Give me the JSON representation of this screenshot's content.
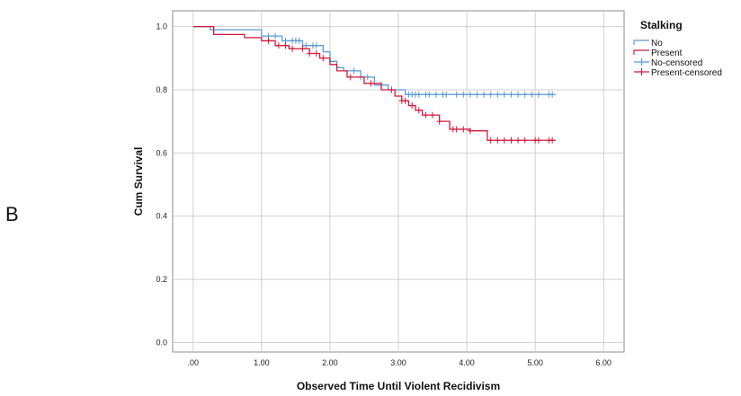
{
  "panel_label": "B",
  "chart_data": {
    "type": "line",
    "subtype": "kaplan-meier",
    "xlabel": "Observed Time Until Violent Recidivism",
    "ylabel": "Cum Survival",
    "xlim": [
      -0.3,
      6.3
    ],
    "ylim": [
      -0.03,
      1.05
    ],
    "x_ticks": [
      0,
      1,
      2,
      3,
      4,
      5,
      6
    ],
    "x_tick_labels": [
      ".00",
      "1.00",
      "2.00",
      "3.00",
      "4.00",
      "5.00",
      "6.00"
    ],
    "y_ticks": [
      0,
      0.2,
      0.4,
      0.6,
      0.8,
      1.0
    ],
    "y_tick_labels": [
      "0.0",
      "0.2",
      "0.4",
      "0.6",
      "0.8",
      "1.0"
    ],
    "grid": true,
    "legend": {
      "title": "Stalking",
      "placement": "right",
      "entries": [
        {
          "label": "No",
          "kind": "line",
          "color": "#5b9bd5"
        },
        {
          "label": "Present",
          "kind": "line",
          "color": "#d1193b"
        },
        {
          "label": "No-censored",
          "kind": "marker",
          "color": "#5b9bd5"
        },
        {
          "label": "Present-censored",
          "kind": "marker",
          "color": "#d1193b"
        }
      ]
    },
    "series": [
      {
        "name": "No",
        "color": "#5b9bd5",
        "steps": [
          [
            0,
            1.0
          ],
          [
            0.25,
            0.99
          ],
          [
            1.0,
            0.97
          ],
          [
            1.3,
            0.955
          ],
          [
            1.6,
            0.94
          ],
          [
            1.9,
            0.92
          ],
          [
            2.0,
            0.89
          ],
          [
            2.1,
            0.87
          ],
          [
            2.2,
            0.86
          ],
          [
            2.45,
            0.84
          ],
          [
            2.65,
            0.815
          ],
          [
            2.85,
            0.8
          ],
          [
            3.1,
            0.785
          ],
          [
            5.3,
            0.785
          ]
        ],
        "censored_x": [
          1.1,
          1.2,
          1.35,
          1.45,
          1.5,
          1.55,
          1.65,
          1.75,
          1.8,
          2.35,
          2.45,
          2.55,
          2.75,
          3.15,
          3.2,
          3.25,
          3.3,
          3.4,
          3.45,
          3.55,
          3.65,
          3.7,
          3.85,
          3.95,
          4.05,
          4.15,
          4.25,
          4.35,
          4.45,
          4.55,
          4.65,
          4.75,
          4.85,
          4.95,
          5.05,
          5.2,
          5.25
        ]
      },
      {
        "name": "Present",
        "color": "#d1193b",
        "steps": [
          [
            0,
            1.0
          ],
          [
            0.3,
            0.975
          ],
          [
            0.75,
            0.965
          ],
          [
            1.0,
            0.955
          ],
          [
            1.2,
            0.94
          ],
          [
            1.4,
            0.93
          ],
          [
            1.7,
            0.915
          ],
          [
            1.85,
            0.9
          ],
          [
            2.0,
            0.88
          ],
          [
            2.1,
            0.86
          ],
          [
            2.25,
            0.84
          ],
          [
            2.5,
            0.82
          ],
          [
            2.75,
            0.8
          ],
          [
            2.95,
            0.78
          ],
          [
            3.05,
            0.765
          ],
          [
            3.15,
            0.75
          ],
          [
            3.25,
            0.735
          ],
          [
            3.35,
            0.72
          ],
          [
            3.6,
            0.7
          ],
          [
            3.75,
            0.675
          ],
          [
            4.05,
            0.67
          ],
          [
            4.3,
            0.64
          ],
          [
            5.3,
            0.64
          ]
        ],
        "censored_x": [
          1.1,
          1.25,
          1.35,
          1.45,
          1.6,
          1.7,
          1.8,
          1.9,
          2.3,
          2.6,
          2.9,
          3.05,
          3.1,
          3.2,
          3.3,
          3.4,
          3.5,
          3.6,
          3.8,
          3.85,
          3.95,
          4.05,
          4.35,
          4.45,
          4.55,
          4.65,
          4.75,
          4.85,
          5.0,
          5.05,
          5.2,
          5.25
        ]
      }
    ]
  }
}
